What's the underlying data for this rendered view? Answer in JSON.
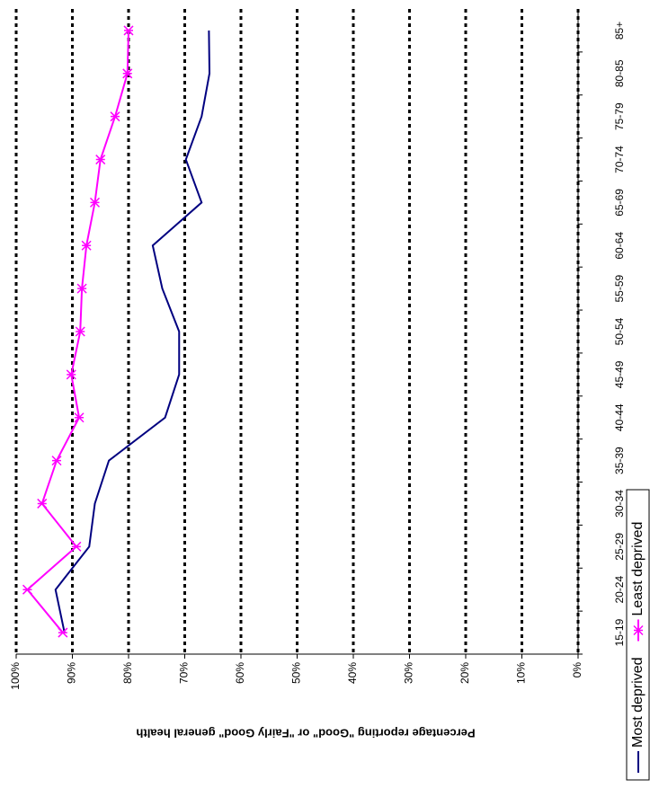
{
  "chart_data": {
    "type": "line",
    "y_label": "Percentage reporting \"Good\" or \"Fairly Good\" general health",
    "categories": [
      "15-19",
      "20-24",
      "25-29",
      "30-34",
      "35-39",
      "40-44",
      "45-49",
      "50-54",
      "55-59",
      "60-64",
      "65-69",
      "70-74",
      "75-79",
      "80-85",
      "85+"
    ],
    "series": [
      {
        "name": "Most deprived",
        "color": "#000080",
        "marker": "none",
        "values": [
          91.4,
          93,
          87,
          86,
          83.5,
          73.5,
          71,
          71,
          74,
          75.7,
          67,
          69.8,
          67,
          65.6,
          65.7
        ]
      },
      {
        "name": "Least deprived",
        "color": "#ff00ff",
        "marker": "asterisk",
        "values": [
          91.7,
          98,
          89.3,
          95.4,
          92.8,
          88.8,
          90.2,
          88.6,
          88.3,
          87.5,
          86,
          85,
          82.4,
          80.2,
          80
        ]
      }
    ],
    "ylim": [
      0,
      100
    ],
    "yticks": [
      {
        "value": 0,
        "label": "0%"
      },
      {
        "value": 10,
        "label": "10%"
      },
      {
        "value": 20,
        "label": "20%"
      },
      {
        "value": 30,
        "label": "30%"
      },
      {
        "value": 40,
        "label": "40%"
      },
      {
        "value": 50,
        "label": "50%"
      },
      {
        "value": 60,
        "label": "60%"
      },
      {
        "value": 70,
        "label": "70%"
      },
      {
        "value": 80,
        "label": "80%"
      },
      {
        "value": 90,
        "label": "90%"
      },
      {
        "value": 100,
        "label": "100%"
      }
    ],
    "grid": true
  }
}
